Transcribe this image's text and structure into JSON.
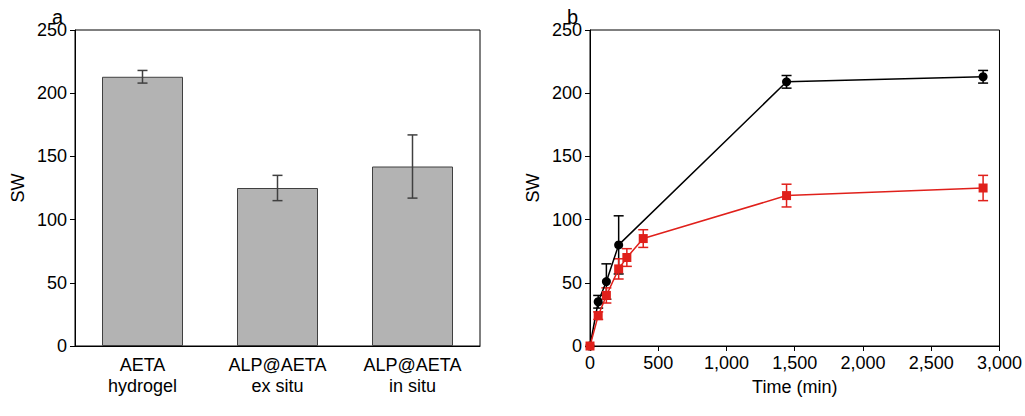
{
  "chart_data": [
    {
      "type": "bar",
      "panel": "a",
      "categories": [
        "AETA hydrogel",
        "ALP@AETA ex situ",
        "ALP@AETA in situ"
      ],
      "values": [
        213,
        125,
        142
      ],
      "errors": [
        5,
        10,
        25
      ],
      "color": "#b3b3b3",
      "ylabel": "SW",
      "ylim": [
        0,
        250
      ],
      "yticks": [
        0,
        50,
        100,
        150,
        200,
        250
      ],
      "grid": false
    },
    {
      "type": "line",
      "panel": "b",
      "xlabel": "Time (min)",
      "ylabel": "SW",
      "xlim": [
        0,
        3000
      ],
      "xticks": [
        0,
        500,
        1000,
        1500,
        2000,
        2500,
        3000
      ],
      "ylim": [
        0,
        250
      ],
      "yticks": [
        0,
        50,
        100,
        150,
        200,
        250
      ],
      "grid": false,
      "series": [
        {
          "color": "#000000",
          "marker": "circle",
          "line_style": "solid",
          "x": [
            0,
            60,
            120,
            210,
            1440,
            2880
          ],
          "values": [
            0,
            35,
            51,
            80,
            209,
            213
          ],
          "errors": [
            0,
            5,
            14,
            23,
            5,
            5
          ]
        },
        {
          "color": "#e0201b",
          "marker": "square",
          "line_style": "solid",
          "x": [
            0,
            60,
            120,
            210,
            270,
            390,
            1440,
            2880
          ],
          "values": [
            0,
            24,
            40,
            61,
            70,
            85,
            119,
            125
          ],
          "errors": [
            0,
            3,
            6,
            8,
            7,
            7,
            9,
            10
          ]
        }
      ]
    }
  ]
}
